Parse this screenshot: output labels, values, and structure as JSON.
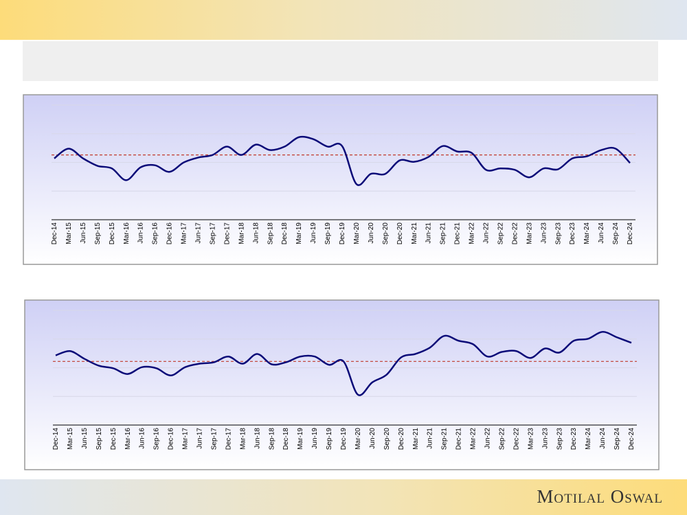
{
  "footer": "Motilal Oswal",
  "chart_data": [
    {
      "type": "line",
      "categories": [
        "Dec-14",
        "Mar-15",
        "Jun-15",
        "Sep-15",
        "Dec-15",
        "Mar-16",
        "Jun-16",
        "Sep-16",
        "Dec-16",
        "Mar-17",
        "Jun-17",
        "Sep-17",
        "Dec-17",
        "Mar-18",
        "Jun-18",
        "Sep-18",
        "Dec-18",
        "Mar-19",
        "Jun-19",
        "Sep-19",
        "Dec-19",
        "Mar-20",
        "Jun-20",
        "Sep-20",
        "Dec-20",
        "Mar-21",
        "Jun-21",
        "Sep-21",
        "Dec-21",
        "Mar-22",
        "Jun-22",
        "Sep-22",
        "Dec-22",
        "Mar-23",
        "Jun-23",
        "Sep-23",
        "Dec-23",
        "Mar-24",
        "Jun-24",
        "Sep-24",
        "Dec-24"
      ],
      "series": [
        {
          "color": "#0a0a78",
          "values": [
            21.4,
            24.8,
            21.4,
            18.8,
            17.9,
            13.8,
            18.3,
            19.0,
            16.7,
            20.0,
            21.7,
            22.6,
            25.5,
            22.6,
            26.2,
            24.3,
            25.5,
            28.8,
            28.1,
            25.5,
            25.7,
            12.4,
            16.0,
            16.0,
            20.7,
            20.2,
            21.9,
            25.7,
            23.8,
            23.3,
            17.4,
            17.9,
            17.4,
            14.8,
            17.9,
            17.6,
            21.4,
            22.1,
            24.3,
            24.8,
            19.8
          ]
        }
      ],
      "average": 22.6,
      "average_color": "#c0392b",
      "ylim": [
        0,
        40
      ],
      "grid": true
    },
    {
      "type": "line",
      "categories": [
        "Dec-14",
        "Mar-15",
        "Jun-15",
        "Sep-15",
        "Dec-15",
        "Mar-16",
        "Jun-16",
        "Sep-16",
        "Dec-16",
        "Mar-17",
        "Jun-17",
        "Sep-17",
        "Dec-17",
        "Mar-18",
        "Jun-18",
        "Sep-18",
        "Dec-18",
        "Mar-19",
        "Jun-19",
        "Sep-19",
        "Dec-19",
        "Mar-20",
        "Jun-20",
        "Sep-20",
        "Dec-20",
        "Mar-21",
        "Jun-21",
        "Sep-21",
        "Dec-21",
        "Mar-22",
        "Jun-22",
        "Sep-22",
        "Dec-22",
        "Mar-23",
        "Jun-23",
        "Sep-23",
        "Dec-23",
        "Mar-24",
        "Jun-24",
        "Sep-24",
        "Dec-24"
      ],
      "series": [
        {
          "color": "#0a0a78",
          "values": [
            24.3,
            25.8,
            23.1,
            20.7,
            19.8,
            17.8,
            20.2,
            19.8,
            17.3,
            20.2,
            21.4,
            21.9,
            23.9,
            21.4,
            24.8,
            21.2,
            21.9,
            23.9,
            23.9,
            21.0,
            22.2,
            10.6,
            14.9,
            17.6,
            23.6,
            24.8,
            27.0,
            31.1,
            29.4,
            28.2,
            23.9,
            25.5,
            25.8,
            23.4,
            26.7,
            25.3,
            29.4,
            30.1,
            32.5,
            30.6,
            28.7
          ]
        }
      ],
      "average": 22.2,
      "average_color": "#c0392b",
      "ylim": [
        0,
        40
      ],
      "grid": true
    }
  ]
}
